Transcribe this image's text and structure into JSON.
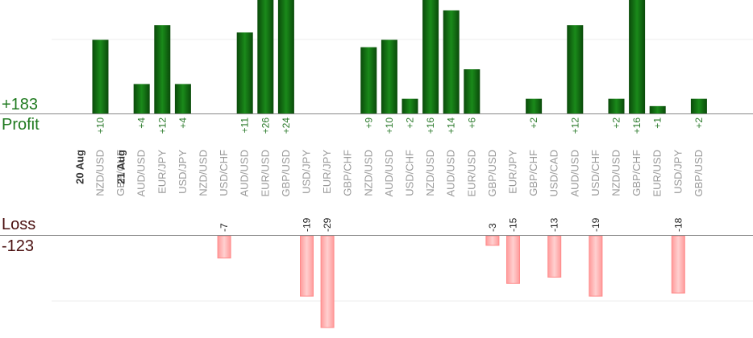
{
  "labels": {
    "profit_total": "+183",
    "profit_word": "Profit",
    "loss_word": "Loss",
    "loss_total": "-123"
  },
  "colors": {
    "profit_bar_dark": "#0a4a0a",
    "profit_bar_light": "#1a8a1a",
    "profit_text": "#2a7a2a",
    "profit_label": "#1f7a1f",
    "loss_bar_fill": "#ffb6b6",
    "loss_bar_edge": "#ff8a8a",
    "loss_label": "#4a0f0f",
    "axis_line": "#888888",
    "pair_text": "#999999",
    "date_text": "#333333"
  },
  "chart_data": {
    "type": "bar",
    "title": "",
    "profit_total": 183,
    "loss_total": -123,
    "grid": true,
    "categories": [
      {
        "date": "20 Aug",
        "pair": "NZD/USD",
        "profit": 10,
        "loss": null
      },
      {
        "date": "",
        "pair": "GBP/CHF",
        "profit": null,
        "loss": null
      },
      {
        "date": "21 Aug",
        "pair": "AUD/USD",
        "profit": 4,
        "loss": null
      },
      {
        "date": "",
        "pair": "EUR/JPY",
        "profit": 12,
        "loss": null
      },
      {
        "date": "",
        "pair": "USD/JPY",
        "profit": 4,
        "loss": null
      },
      {
        "date": "",
        "pair": "NZD/USD",
        "profit": null,
        "loss": null
      },
      {
        "date": "",
        "pair": "USD/CHF",
        "profit": null,
        "loss": -7
      },
      {
        "date": "",
        "pair": "AUD/USD",
        "profit": 11,
        "loss": null
      },
      {
        "date": "",
        "pair": "EUR/USD",
        "profit": 26,
        "loss": null
      },
      {
        "date": "",
        "pair": "GBP/USD",
        "profit": 24,
        "loss": null
      },
      {
        "date": "",
        "pair": "USD/JPY",
        "profit": null,
        "loss": -19
      },
      {
        "date": "",
        "pair": "EUR/JPY",
        "profit": null,
        "loss": -29
      },
      {
        "date": "",
        "pair": "GBP/CHF",
        "profit": null,
        "loss": null
      },
      {
        "date": "",
        "pair": "NZD/USD",
        "profit": 9,
        "loss": null
      },
      {
        "date": "",
        "pair": "AUD/USD",
        "profit": 10,
        "loss": null
      },
      {
        "date": "",
        "pair": "USD/CHF",
        "profit": 2,
        "loss": null
      },
      {
        "date": "",
        "pair": "NZD/USD",
        "profit": 16,
        "loss": null
      },
      {
        "date": "",
        "pair": "AUD/USD",
        "profit": 14,
        "loss": null
      },
      {
        "date": "",
        "pair": "EUR/USD",
        "profit": 6,
        "loss": null
      },
      {
        "date": "",
        "pair": "GBP/USD",
        "profit": null,
        "loss": -3
      },
      {
        "date": "",
        "pair": "EUR/JPY",
        "profit": null,
        "loss": -15
      },
      {
        "date": "",
        "pair": "GBP/CHF",
        "profit": 2,
        "loss": null
      },
      {
        "date": "",
        "pair": "USD/CAD",
        "profit": null,
        "loss": -13
      },
      {
        "date": "",
        "pair": "AUD/USD",
        "profit": 12,
        "loss": null
      },
      {
        "date": "",
        "pair": "USD/CHF",
        "profit": null,
        "loss": -19
      },
      {
        "date": "",
        "pair": "NZD/USD",
        "profit": 2,
        "loss": null
      },
      {
        "date": "",
        "pair": "GBP/CHF",
        "profit": 16,
        "loss": null
      },
      {
        "date": "",
        "pair": "EUR/USD",
        "profit": 1,
        "loss": null
      },
      {
        "date": "",
        "pair": "USD/JPY",
        "profit": null,
        "loss": -18
      },
      {
        "date": "",
        "pair": "GBP/USD",
        "profit": 2,
        "loss": null
      }
    ]
  }
}
